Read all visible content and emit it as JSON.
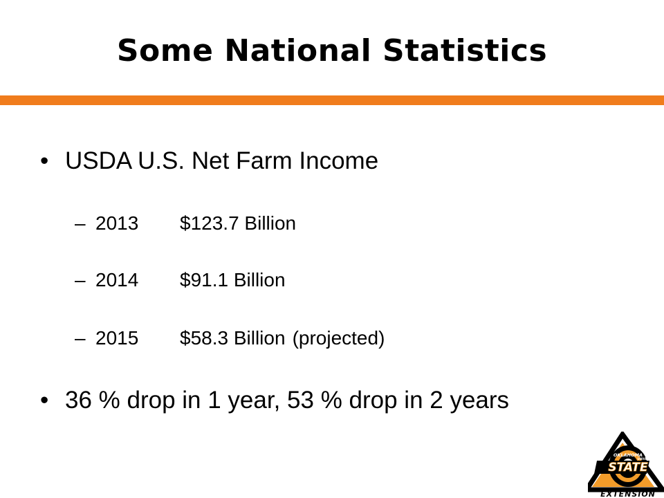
{
  "slide": {
    "title": "Some National Statistics",
    "accent_color": "#f07c1c",
    "bullets": [
      {
        "marker": "•",
        "text": "USDA U.S. Net Farm Income",
        "subitems": [
          {
            "marker": "–",
            "year": "2013",
            "amount": "$123.7 Billion",
            "note": ""
          },
          {
            "marker": "–",
            "year": "2014",
            "amount": "$91.1 Billion",
            "note": ""
          },
          {
            "marker": "–",
            "year": "2015",
            "amount": "$58.3 Billion",
            "note": "(projected)"
          }
        ]
      },
      {
        "marker": "•",
        "text": "36 % drop in 1 year, 53 % drop in 2 years"
      }
    ],
    "logo": {
      "icon": "oklahoma-state-extension-logo",
      "line1": "OKLAHOMA",
      "line2": "STATE",
      "line3": "UNIVERSITY",
      "line4": "EXTENSION"
    }
  }
}
